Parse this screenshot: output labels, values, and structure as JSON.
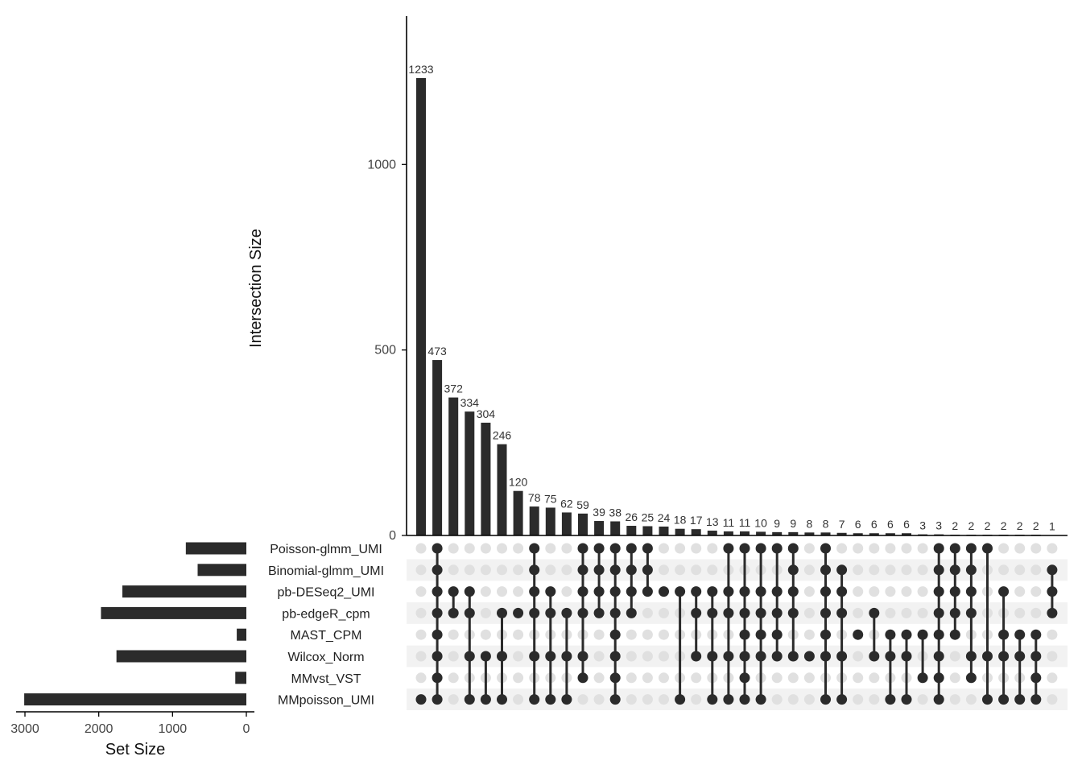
{
  "chart_data": {
    "type": "upset",
    "ylabel": "Intersection Size",
    "xlabel_sets": "Set Size",
    "y_ticks": [
      0,
      500,
      1000
    ],
    "set_size_ticks": [
      3000,
      2000,
      1000,
      0
    ],
    "ylim": [
      0,
      1400
    ],
    "set_size_lim": [
      0,
      3120
    ],
    "sets": [
      "Poisson-glmm_UMI",
      "Binomial-glmm_UMI",
      "pb-DESeq2_UMI",
      "pb-edgeR_cpm",
      "MAST_CPM",
      "Wilcox_Norm",
      "MMvst_VST",
      "MMpoisson_UMI"
    ],
    "set_sizes": [
      820,
      660,
      1680,
      1970,
      130,
      1760,
      150,
      3010
    ],
    "intersections": [
      {
        "size": 1233,
        "sets": [
          7
        ]
      },
      {
        "size": 473,
        "sets": [
          0,
          1,
          2,
          3,
          4,
          5,
          6,
          7
        ]
      },
      {
        "size": 372,
        "sets": [
          2,
          3
        ]
      },
      {
        "size": 334,
        "sets": [
          2,
          3,
          5,
          7
        ]
      },
      {
        "size": 304,
        "sets": [
          5,
          7
        ]
      },
      {
        "size": 246,
        "sets": [
          3,
          5,
          7
        ]
      },
      {
        "size": 120,
        "sets": [
          3
        ]
      },
      {
        "size": 78,
        "sets": [
          0,
          1,
          2,
          3,
          5,
          7
        ]
      },
      {
        "size": 75,
        "sets": [
          2,
          3,
          5,
          7
        ]
      },
      {
        "size": 62,
        "sets": [
          3,
          5,
          7
        ]
      },
      {
        "size": 59,
        "sets": [
          0,
          1,
          2,
          3,
          5,
          6
        ]
      },
      {
        "size": 39,
        "sets": [
          0,
          1,
          2,
          3
        ]
      },
      {
        "size": 38,
        "sets": [
          0,
          1,
          2,
          3,
          4,
          5,
          6,
          7
        ]
      },
      {
        "size": 26,
        "sets": [
          0,
          1,
          2,
          3
        ]
      },
      {
        "size": 25,
        "sets": [
          0,
          1,
          2
        ]
      },
      {
        "size": 24,
        "sets": [
          2
        ]
      },
      {
        "size": 18,
        "sets": [
          2,
          7
        ]
      },
      {
        "size": 17,
        "sets": [
          2,
          3,
          5
        ]
      },
      {
        "size": 13,
        "sets": [
          2,
          3,
          5,
          7
        ]
      },
      {
        "size": 11,
        "sets": [
          0,
          2,
          3,
          5,
          7
        ]
      },
      {
        "size": 11,
        "sets": [
          0,
          2,
          3,
          4,
          5,
          6,
          7
        ]
      },
      {
        "size": 10,
        "sets": [
          0,
          2,
          3,
          4,
          5,
          7
        ]
      },
      {
        "size": 9,
        "sets": [
          0,
          2,
          3,
          4,
          5
        ]
      },
      {
        "size": 9,
        "sets": [
          0,
          1,
          2,
          3,
          5
        ]
      },
      {
        "size": 8,
        "sets": [
          5
        ]
      },
      {
        "size": 8,
        "sets": [
          0,
          1,
          2,
          3,
          4,
          5,
          7
        ]
      },
      {
        "size": 7,
        "sets": [
          1,
          2,
          3,
          5,
          7
        ]
      },
      {
        "size": 6,
        "sets": [
          4
        ]
      },
      {
        "size": 6,
        "sets": [
          3,
          5
        ]
      },
      {
        "size": 6,
        "sets": [
          4,
          5,
          7
        ]
      },
      {
        "size": 6,
        "sets": [
          4,
          5,
          7
        ]
      },
      {
        "size": 3,
        "sets": [
          4,
          6
        ]
      },
      {
        "size": 3,
        "sets": [
          0,
          1,
          2,
          3,
          4,
          5,
          6,
          7
        ]
      },
      {
        "size": 2,
        "sets": [
          0,
          1,
          2,
          3,
          4
        ]
      },
      {
        "size": 2,
        "sets": [
          0,
          1,
          2,
          3,
          5,
          6
        ]
      },
      {
        "size": 2,
        "sets": [
          0,
          5,
          7
        ]
      },
      {
        "size": 2,
        "sets": [
          2,
          4,
          5,
          7
        ]
      },
      {
        "size": 2,
        "sets": [
          4,
          5,
          7
        ]
      },
      {
        "size": 2,
        "sets": [
          4,
          5,
          6,
          7
        ]
      },
      {
        "size": 1,
        "sets": [
          1,
          2,
          3
        ]
      }
    ],
    "colors": {
      "bar": "#2b2b2b",
      "dot_active": "#2b2b2b",
      "dot_inactive": "#e0e0e0",
      "stripe": "#f2f2f2",
      "axis": "#000000"
    },
    "grid": false
  }
}
